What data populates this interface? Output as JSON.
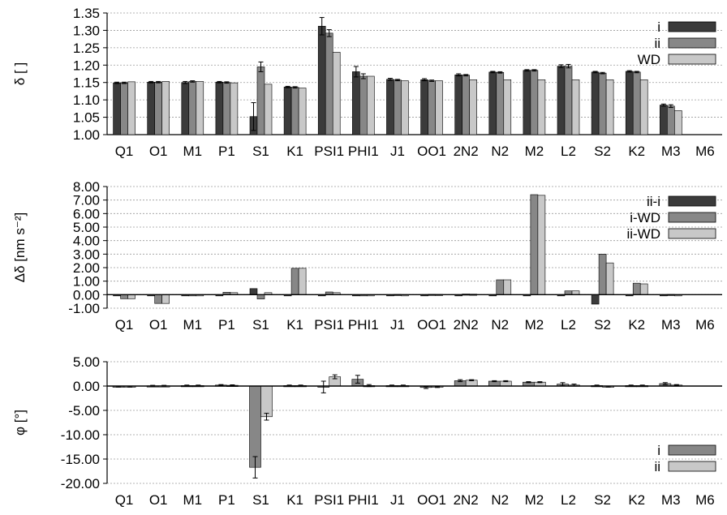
{
  "chart_data": [
    {
      "type": "bar",
      "ylabel": "δ [ ]",
      "ylim": [
        1.0,
        1.35
      ],
      "yticks": [
        "1.00",
        "1.05",
        "1.10",
        "1.15",
        "1.20",
        "1.25",
        "1.30",
        "1.35"
      ],
      "grid": true,
      "legend_position": "top-right",
      "categories": [
        "Q1",
        "O1",
        "M1",
        "P1",
        "S1",
        "K1",
        "PSI1",
        "PHI1",
        "J1",
        "OO1",
        "2N2",
        "N2",
        "M2",
        "L2",
        "S2",
        "K2",
        "M3",
        "M6"
      ],
      "series": [
        {
          "name": "i",
          "color": "#3b3b3b",
          "values": [
            1.149,
            1.151,
            1.15,
            1.151,
            1.052,
            1.137,
            1.312,
            1.181,
            1.159,
            1.158,
            1.172,
            1.18,
            1.185,
            1.197,
            1.18,
            1.182,
            1.085,
            null
          ],
          "errors": [
            0.002,
            0.002,
            0.003,
            0.002,
            0.04,
            0.002,
            0.025,
            0.015,
            0.003,
            0.003,
            0.003,
            0.002,
            0.002,
            0.004,
            0.002,
            0.002,
            0.003,
            null
          ]
        },
        {
          "name": "ii",
          "color": "#878787",
          "values": [
            1.149,
            1.151,
            1.153,
            1.15,
            1.195,
            1.136,
            1.292,
            1.168,
            1.157,
            1.155,
            1.171,
            1.179,
            1.185,
            1.197,
            1.177,
            1.18,
            1.082,
            null
          ],
          "errors": [
            0.002,
            0.002,
            0.002,
            0.002,
            0.014,
            0.002,
            0.01,
            0.007,
            0.002,
            0.002,
            0.002,
            0.002,
            0.002,
            0.005,
            0.002,
            0.002,
            0.004,
            null
          ]
        },
        {
          "name": "WD",
          "color": "#c8c8c8",
          "values": [
            1.152,
            1.153,
            1.153,
            1.149,
            1.145,
            1.134,
            1.237,
            1.168,
            1.155,
            1.155,
            1.158,
            1.158,
            1.158,
            1.158,
            1.158,
            1.158,
            1.069,
            null
          ],
          "errors": null
        }
      ]
    },
    {
      "type": "bar",
      "ylabel": "Δδ [nm s⁻²]",
      "ylim": [
        -1.0,
        8.0
      ],
      "yticks": [
        "-1.00",
        "0.00",
        "1.00",
        "2.00",
        "3.00",
        "4.00",
        "5.00",
        "6.00",
        "7.00",
        "8.00"
      ],
      "grid": true,
      "legend_position": "top-right",
      "categories": [
        "Q1",
        "O1",
        "M1",
        "P1",
        "S1",
        "K1",
        "PSI1",
        "PHI1",
        "J1",
        "OO1",
        "2N2",
        "N2",
        "M2",
        "L2",
        "S2",
        "K2",
        "M3",
        "M6"
      ],
      "series": [
        {
          "name": "ii-i",
          "color": "#3b3b3b",
          "values": [
            0.0,
            0.0,
            -0.05,
            -0.02,
            0.45,
            -0.02,
            -0.07,
            -0.09,
            -0.02,
            -0.01,
            -0.02,
            -0.02,
            -0.05,
            0.0,
            -0.7,
            -0.06,
            -0.03,
            null
          ]
        },
        {
          "name": "i-WD",
          "color": "#878787",
          "values": [
            -0.3,
            -0.65,
            -0.02,
            0.18,
            -0.32,
            1.95,
            0.2,
            0.0,
            0.02,
            0.03,
            0.05,
            1.1,
            7.4,
            0.28,
            3.0,
            0.85,
            0.02,
            null
          ]
        },
        {
          "name": "ii-WD",
          "color": "#c8c8c8",
          "values": [
            -0.3,
            -0.65,
            -0.05,
            0.15,
            0.15,
            1.95,
            0.15,
            -0.07,
            0.0,
            0.02,
            0.04,
            1.1,
            7.35,
            0.28,
            2.35,
            0.8,
            -0.01,
            null
          ]
        }
      ]
    },
    {
      "type": "bar",
      "ylabel": "φ [°]",
      "ylim": [
        -20.0,
        5.0
      ],
      "yticks": [
        "-20.00",
        "-15.00",
        "-10.00",
        "-5.00",
        "0.00",
        "5.00"
      ],
      "grid": true,
      "legend_position": "bottom-right",
      "categories": [
        "Q1",
        "O1",
        "M1",
        "P1",
        "S1",
        "K1",
        "PSI1",
        "PHI1",
        "J1",
        "OO1",
        "2N2",
        "N2",
        "M2",
        "L2",
        "S2",
        "K2",
        "M3",
        "M6"
      ],
      "series": [
        {
          "name": "i",
          "color": "#878787",
          "values": [
            -0.1,
            0.05,
            0.1,
            0.2,
            -16.7,
            0.1,
            -0.2,
            1.4,
            0.1,
            -0.3,
            1.1,
            1.0,
            0.8,
            0.4,
            0.1,
            0.1,
            0.5,
            null
          ],
          "errors": [
            0.1,
            0.1,
            0.1,
            0.1,
            2.2,
            0.1,
            1.2,
            0.8,
            0.1,
            0.2,
            0.2,
            0.1,
            0.1,
            0.3,
            0.1,
            0.1,
            0.2,
            null
          ]
        },
        {
          "name": "ii",
          "color": "#c8c8c8",
          "values": [
            -0.1,
            0.05,
            0.1,
            0.15,
            -6.3,
            0.1,
            1.9,
            0.1,
            0.1,
            -0.2,
            1.2,
            1.0,
            0.8,
            0.2,
            -0.1,
            0.1,
            0.2,
            null
          ],
          "errors": [
            0.1,
            0.1,
            0.1,
            0.1,
            0.7,
            0.1,
            0.4,
            0.2,
            0.1,
            0.1,
            0.1,
            0.1,
            0.1,
            0.2,
            0.1,
            0.1,
            0.1,
            null
          ]
        }
      ]
    }
  ]
}
